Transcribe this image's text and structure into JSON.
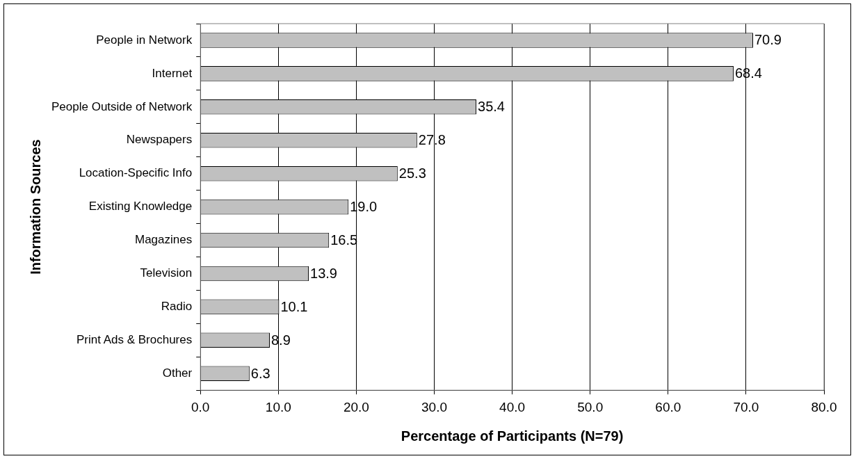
{
  "chart_data": {
    "type": "bar",
    "orientation": "horizontal",
    "xlabel": "Percentage of Participants (N=79)",
    "ylabel": "Information Sources",
    "categories": [
      "People in Network",
      "Internet",
      "People Outside of Network",
      "Newspapers",
      "Location-Specific Info",
      "Existing Knowledge",
      "Magazines",
      "Television",
      "Radio",
      "Print Ads & Brochures",
      "Other"
    ],
    "values": [
      70.9,
      68.4,
      35.4,
      27.8,
      25.3,
      19.0,
      16.5,
      13.9,
      10.1,
      8.9,
      6.3
    ],
    "value_labels": [
      "70.9",
      "68.4",
      "35.4",
      "27.8",
      "25.3",
      "19.0",
      "16.5",
      "13.9",
      "10.1",
      "8.9",
      "6.3"
    ],
    "color": "#c0c0c0",
    "xlim": [
      0,
      80
    ],
    "xticks": [
      {
        "value": 0,
        "label": "0.0"
      },
      {
        "value": 10,
        "label": "10.0"
      },
      {
        "value": 20,
        "label": "20.0"
      },
      {
        "value": 30,
        "label": "30.0"
      },
      {
        "value": 40,
        "label": "40.0"
      },
      {
        "value": 50,
        "label": "50.0"
      },
      {
        "value": 60,
        "label": "60.0"
      },
      {
        "value": 70,
        "label": "70.0"
      },
      {
        "value": 80,
        "label": "80.0"
      }
    ],
    "grid": "x",
    "legend": false
  }
}
